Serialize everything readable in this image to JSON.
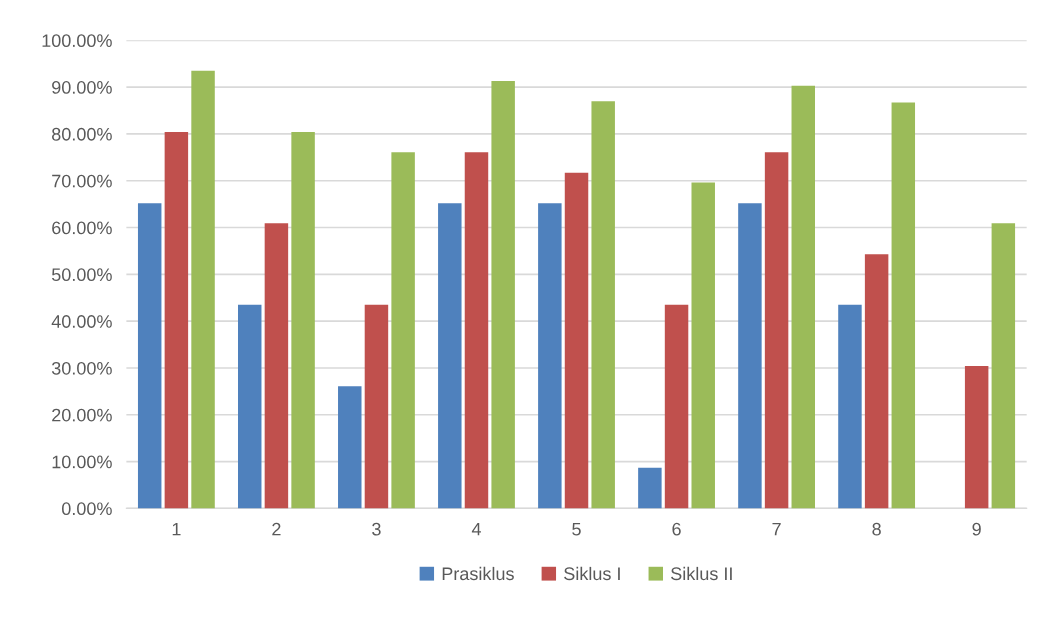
{
  "chart_data": {
    "type": "bar",
    "categories": [
      "1",
      "2",
      "3",
      "4",
      "5",
      "6",
      "7",
      "8",
      "9"
    ],
    "series": [
      {
        "name": "Prasiklus",
        "color": "#4f81bd",
        "values": [
          65.2,
          43.5,
          26.1,
          65.2,
          65.2,
          8.7,
          65.2,
          43.5,
          0
        ]
      },
      {
        "name": "Siklus I",
        "color": "#c0504d",
        "values": [
          80.4,
          60.9,
          43.5,
          76.1,
          71.7,
          43.5,
          76.1,
          54.3,
          30.4
        ]
      },
      {
        "name": "Siklus II",
        "color": "#9bbb59",
        "values": [
          93.5,
          80.4,
          76.1,
          91.3,
          87.0,
          69.6,
          90.3,
          86.7,
          60.9
        ]
      }
    ],
    "ylim": [
      0,
      100
    ],
    "yticks": [
      {
        "value": 0,
        "label": "0.00%"
      },
      {
        "value": 10,
        "label": "10.00%"
      },
      {
        "value": 20,
        "label": "20.00%"
      },
      {
        "value": 30,
        "label": "30.00%"
      },
      {
        "value": 40,
        "label": "40.00%"
      },
      {
        "value": 50,
        "label": "50.00%"
      },
      {
        "value": 60,
        "label": "60.00%"
      },
      {
        "value": 70,
        "label": "70.00%"
      },
      {
        "value": 80,
        "label": "80.00%"
      },
      {
        "value": 90,
        "label": "90.00%"
      },
      {
        "value": 100,
        "label": "100.00%"
      }
    ],
    "grid": "y",
    "legend": "bottom"
  }
}
